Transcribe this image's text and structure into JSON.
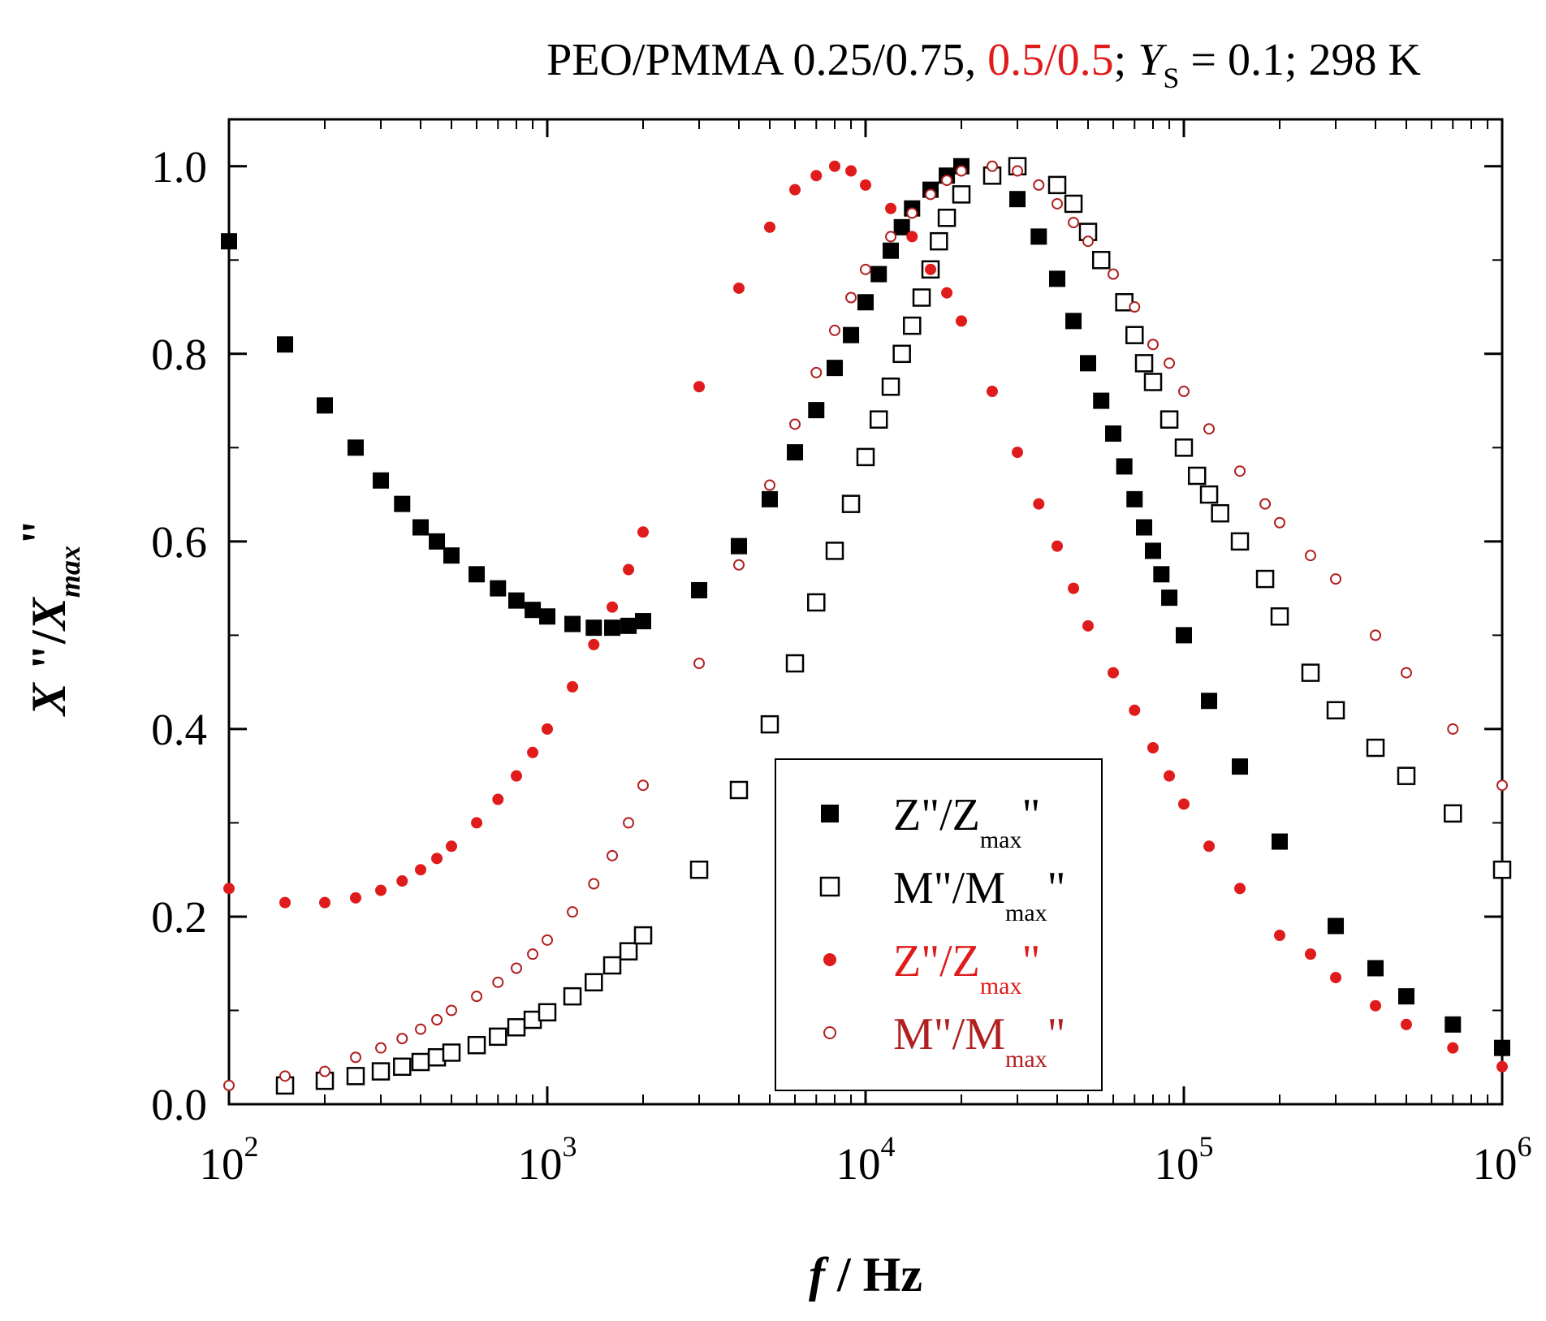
{
  "chart_data": {
    "type": "scatter",
    "title": {
      "part1": "PEO/PMMA 0.25/0.75, ",
      "part2": "0.5/0.5",
      "part3": "; ",
      "ys": "Y",
      "ys_sub": "S",
      "part4": " = 0.1; 298 K"
    },
    "xlabel": {
      "italic": "f",
      "rest": " / Hz"
    },
    "ylabel": {
      "x1": "X",
      "quote": " \"/",
      "x2": "X",
      "sub": "max",
      "quote2": "\""
    },
    "xscale": "log",
    "xlim": [
      100,
      1000000
    ],
    "ylim": [
      0,
      1.05
    ],
    "x_ticks": [
      {
        "base": "10",
        "exp": "2",
        "value": 100
      },
      {
        "base": "10",
        "exp": "3",
        "value": 1000
      },
      {
        "base": "10",
        "exp": "4",
        "value": 10000
      },
      {
        "base": "10",
        "exp": "5",
        "value": 100000
      },
      {
        "base": "10",
        "exp": "6",
        "value": 1000000
      }
    ],
    "y_ticks": [
      {
        "label": "0.0",
        "value": 0.0
      },
      {
        "label": "0.2",
        "value": 0.2
      },
      {
        "label": "0.4",
        "value": 0.4
      },
      {
        "label": "0.6",
        "value": 0.6
      },
      {
        "label": "0.8",
        "value": 0.8
      },
      {
        "label": "1.0",
        "value": 1.0
      }
    ],
    "legend_position": "center-bottom",
    "series": [
      {
        "name": "Z\"/Zmax\" (0.25/0.75)",
        "legend_main": "Z\"/Z",
        "legend_sub": "max",
        "legend_tail": "\"",
        "color": "#000000",
        "marker": "filled-square",
        "points": [
          [
            100,
            0.92
          ],
          [
            150,
            0.81
          ],
          [
            200,
            0.745
          ],
          [
            250,
            0.7
          ],
          [
            300,
            0.665
          ],
          [
            350,
            0.64
          ],
          [
            400,
            0.615
          ],
          [
            450,
            0.6
          ],
          [
            500,
            0.585
          ],
          [
            600,
            0.565
          ],
          [
            700,
            0.55
          ],
          [
            800,
            0.537
          ],
          [
            900,
            0.527
          ],
          [
            1000,
            0.52
          ],
          [
            1200,
            0.512
          ],
          [
            1400,
            0.508
          ],
          [
            1600,
            0.508
          ],
          [
            1800,
            0.51
          ],
          [
            2000,
            0.515
          ],
          [
            3000,
            0.548
          ],
          [
            4000,
            0.595
          ],
          [
            5000,
            0.645
          ],
          [
            6000,
            0.695
          ],
          [
            7000,
            0.74
          ],
          [
            8000,
            0.785
          ],
          [
            9000,
            0.82
          ],
          [
            10000,
            0.855
          ],
          [
            11000,
            0.885
          ],
          [
            12000,
            0.91
          ],
          [
            13000,
            0.935
          ],
          [
            14000,
            0.955
          ],
          [
            16000,
            0.975
          ],
          [
            18000,
            0.99
          ],
          [
            20000,
            1.0
          ],
          [
            30000,
            0.965
          ],
          [
            35000,
            0.925
          ],
          [
            40000,
            0.88
          ],
          [
            45000,
            0.835
          ],
          [
            50000,
            0.79
          ],
          [
            55000,
            0.75
          ],
          [
            60000,
            0.715
          ],
          [
            65000,
            0.68
          ],
          [
            70000,
            0.645
          ],
          [
            75000,
            0.615
          ],
          [
            80000,
            0.59
          ],
          [
            85000,
            0.565
          ],
          [
            90000,
            0.54
          ],
          [
            100000,
            0.5
          ],
          [
            120000,
            0.43
          ],
          [
            150000,
            0.36
          ],
          [
            200000,
            0.28
          ],
          [
            300000,
            0.19
          ],
          [
            400000,
            0.145
          ],
          [
            500000,
            0.115
          ],
          [
            700000,
            0.085
          ],
          [
            1000000,
            0.06
          ]
        ]
      },
      {
        "name": "M\"/Mmax\" (0.25/0.75)",
        "legend_main": "M\"/M",
        "legend_sub": "max",
        "legend_tail": "\"",
        "color": "#000000",
        "marker": "open-square",
        "points": [
          [
            150,
            0.02
          ],
          [
            200,
            0.025
          ],
          [
            250,
            0.03
          ],
          [
            300,
            0.035
          ],
          [
            350,
            0.04
          ],
          [
            400,
            0.045
          ],
          [
            450,
            0.05
          ],
          [
            500,
            0.055
          ],
          [
            600,
            0.063
          ],
          [
            700,
            0.072
          ],
          [
            800,
            0.082
          ],
          [
            900,
            0.09
          ],
          [
            1000,
            0.098
          ],
          [
            1200,
            0.115
          ],
          [
            1400,
            0.13
          ],
          [
            1600,
            0.148
          ],
          [
            1800,
            0.163
          ],
          [
            2000,
            0.18
          ],
          [
            3000,
            0.25
          ],
          [
            4000,
            0.335
          ],
          [
            5000,
            0.405
          ],
          [
            6000,
            0.47
          ],
          [
            7000,
            0.535
          ],
          [
            8000,
            0.59
          ],
          [
            9000,
            0.64
          ],
          [
            10000,
            0.69
          ],
          [
            11000,
            0.73
          ],
          [
            12000,
            0.765
          ],
          [
            13000,
            0.8
          ],
          [
            14000,
            0.83
          ],
          [
            15000,
            0.86
          ],
          [
            16000,
            0.89
          ],
          [
            17000,
            0.92
          ],
          [
            18000,
            0.945
          ],
          [
            20000,
            0.97
          ],
          [
            25000,
            0.99
          ],
          [
            30000,
            1.0
          ],
          [
            40000,
            0.98
          ],
          [
            45000,
            0.96
          ],
          [
            50000,
            0.93
          ],
          [
            55000,
            0.9
          ],
          [
            65000,
            0.855
          ],
          [
            70000,
            0.82
          ],
          [
            75000,
            0.79
          ],
          [
            80000,
            0.77
          ],
          [
            90000,
            0.73
          ],
          [
            100000,
            0.7
          ],
          [
            110000,
            0.67
          ],
          [
            120000,
            0.65
          ],
          [
            130000,
            0.63
          ],
          [
            150000,
            0.6
          ],
          [
            180000,
            0.56
          ],
          [
            200000,
            0.52
          ],
          [
            250000,
            0.46
          ],
          [
            300000,
            0.42
          ],
          [
            400000,
            0.38
          ],
          [
            500000,
            0.35
          ],
          [
            700000,
            0.31
          ],
          [
            1000000,
            0.25
          ]
        ]
      },
      {
        "name": "Z\"/Zmax\" (0.5/0.5)",
        "legend_main": "Z\"/Z",
        "legend_sub": "max",
        "legend_tail": "\"",
        "color": "#e01b1b",
        "marker": "filled-circle",
        "points": [
          [
            100,
            0.23
          ],
          [
            150,
            0.215
          ],
          [
            200,
            0.215
          ],
          [
            250,
            0.22
          ],
          [
            300,
            0.228
          ],
          [
            350,
            0.238
          ],
          [
            400,
            0.25
          ],
          [
            450,
            0.262
          ],
          [
            500,
            0.275
          ],
          [
            600,
            0.3
          ],
          [
            700,
            0.325
          ],
          [
            800,
            0.35
          ],
          [
            900,
            0.375
          ],
          [
            1000,
            0.4
          ],
          [
            1200,
            0.445
          ],
          [
            1400,
            0.49
          ],
          [
            1600,
            0.53
          ],
          [
            1800,
            0.57
          ],
          [
            2000,
            0.61
          ],
          [
            3000,
            0.765
          ],
          [
            4000,
            0.87
          ],
          [
            5000,
            0.935
          ],
          [
            6000,
            0.975
          ],
          [
            7000,
            0.99
          ],
          [
            8000,
            1.0
          ],
          [
            9000,
            0.995
          ],
          [
            10000,
            0.98
          ],
          [
            12000,
            0.955
          ],
          [
            14000,
            0.925
          ],
          [
            16000,
            0.89
          ],
          [
            18000,
            0.865
          ],
          [
            20000,
            0.835
          ],
          [
            25000,
            0.76
          ],
          [
            30000,
            0.695
          ],
          [
            35000,
            0.64
          ],
          [
            40000,
            0.595
          ],
          [
            45000,
            0.55
          ],
          [
            50000,
            0.51
          ],
          [
            60000,
            0.46
          ],
          [
            70000,
            0.42
          ],
          [
            80000,
            0.38
          ],
          [
            90000,
            0.35
          ],
          [
            100000,
            0.32
          ],
          [
            120000,
            0.275
          ],
          [
            150000,
            0.23
          ],
          [
            200000,
            0.18
          ],
          [
            250000,
            0.16
          ],
          [
            300000,
            0.135
          ],
          [
            400000,
            0.105
          ],
          [
            500000,
            0.085
          ],
          [
            700000,
            0.06
          ],
          [
            1000000,
            0.04
          ]
        ]
      },
      {
        "name": "M\"/Mmax\" (0.5/0.5)",
        "legend_main": "M\"/M",
        "legend_sub": "max",
        "legend_tail": "\"",
        "color": "#b02020",
        "marker": "open-circle",
        "points": [
          [
            100,
            0.02
          ],
          [
            150,
            0.03
          ],
          [
            200,
            0.035
          ],
          [
            250,
            0.05
          ],
          [
            300,
            0.06
          ],
          [
            350,
            0.07
          ],
          [
            400,
            0.08
          ],
          [
            450,
            0.09
          ],
          [
            500,
            0.1
          ],
          [
            600,
            0.115
          ],
          [
            700,
            0.13
          ],
          [
            800,
            0.145
          ],
          [
            900,
            0.16
          ],
          [
            1000,
            0.175
          ],
          [
            1200,
            0.205
          ],
          [
            1400,
            0.235
          ],
          [
            1600,
            0.265
          ],
          [
            1800,
            0.3
          ],
          [
            2000,
            0.34
          ],
          [
            3000,
            0.47
          ],
          [
            4000,
            0.575
          ],
          [
            5000,
            0.66
          ],
          [
            6000,
            0.725
          ],
          [
            7000,
            0.78
          ],
          [
            8000,
            0.825
          ],
          [
            9000,
            0.86
          ],
          [
            10000,
            0.89
          ],
          [
            12000,
            0.925
          ],
          [
            14000,
            0.95
          ],
          [
            16000,
            0.97
          ],
          [
            18000,
            0.985
          ],
          [
            20000,
            0.995
          ],
          [
            25000,
            1.0
          ],
          [
            30000,
            0.995
          ],
          [
            35000,
            0.98
          ],
          [
            40000,
            0.96
          ],
          [
            45000,
            0.94
          ],
          [
            50000,
            0.92
          ],
          [
            60000,
            0.885
          ],
          [
            70000,
            0.85
          ],
          [
            80000,
            0.81
          ],
          [
            90000,
            0.79
          ],
          [
            100000,
            0.76
          ],
          [
            120000,
            0.72
          ],
          [
            150000,
            0.675
          ],
          [
            180000,
            0.64
          ],
          [
            200000,
            0.62
          ],
          [
            250000,
            0.585
          ],
          [
            300000,
            0.56
          ],
          [
            400000,
            0.5
          ],
          [
            500000,
            0.46
          ],
          [
            700000,
            0.4
          ],
          [
            1000000,
            0.34
          ]
        ]
      }
    ]
  }
}
